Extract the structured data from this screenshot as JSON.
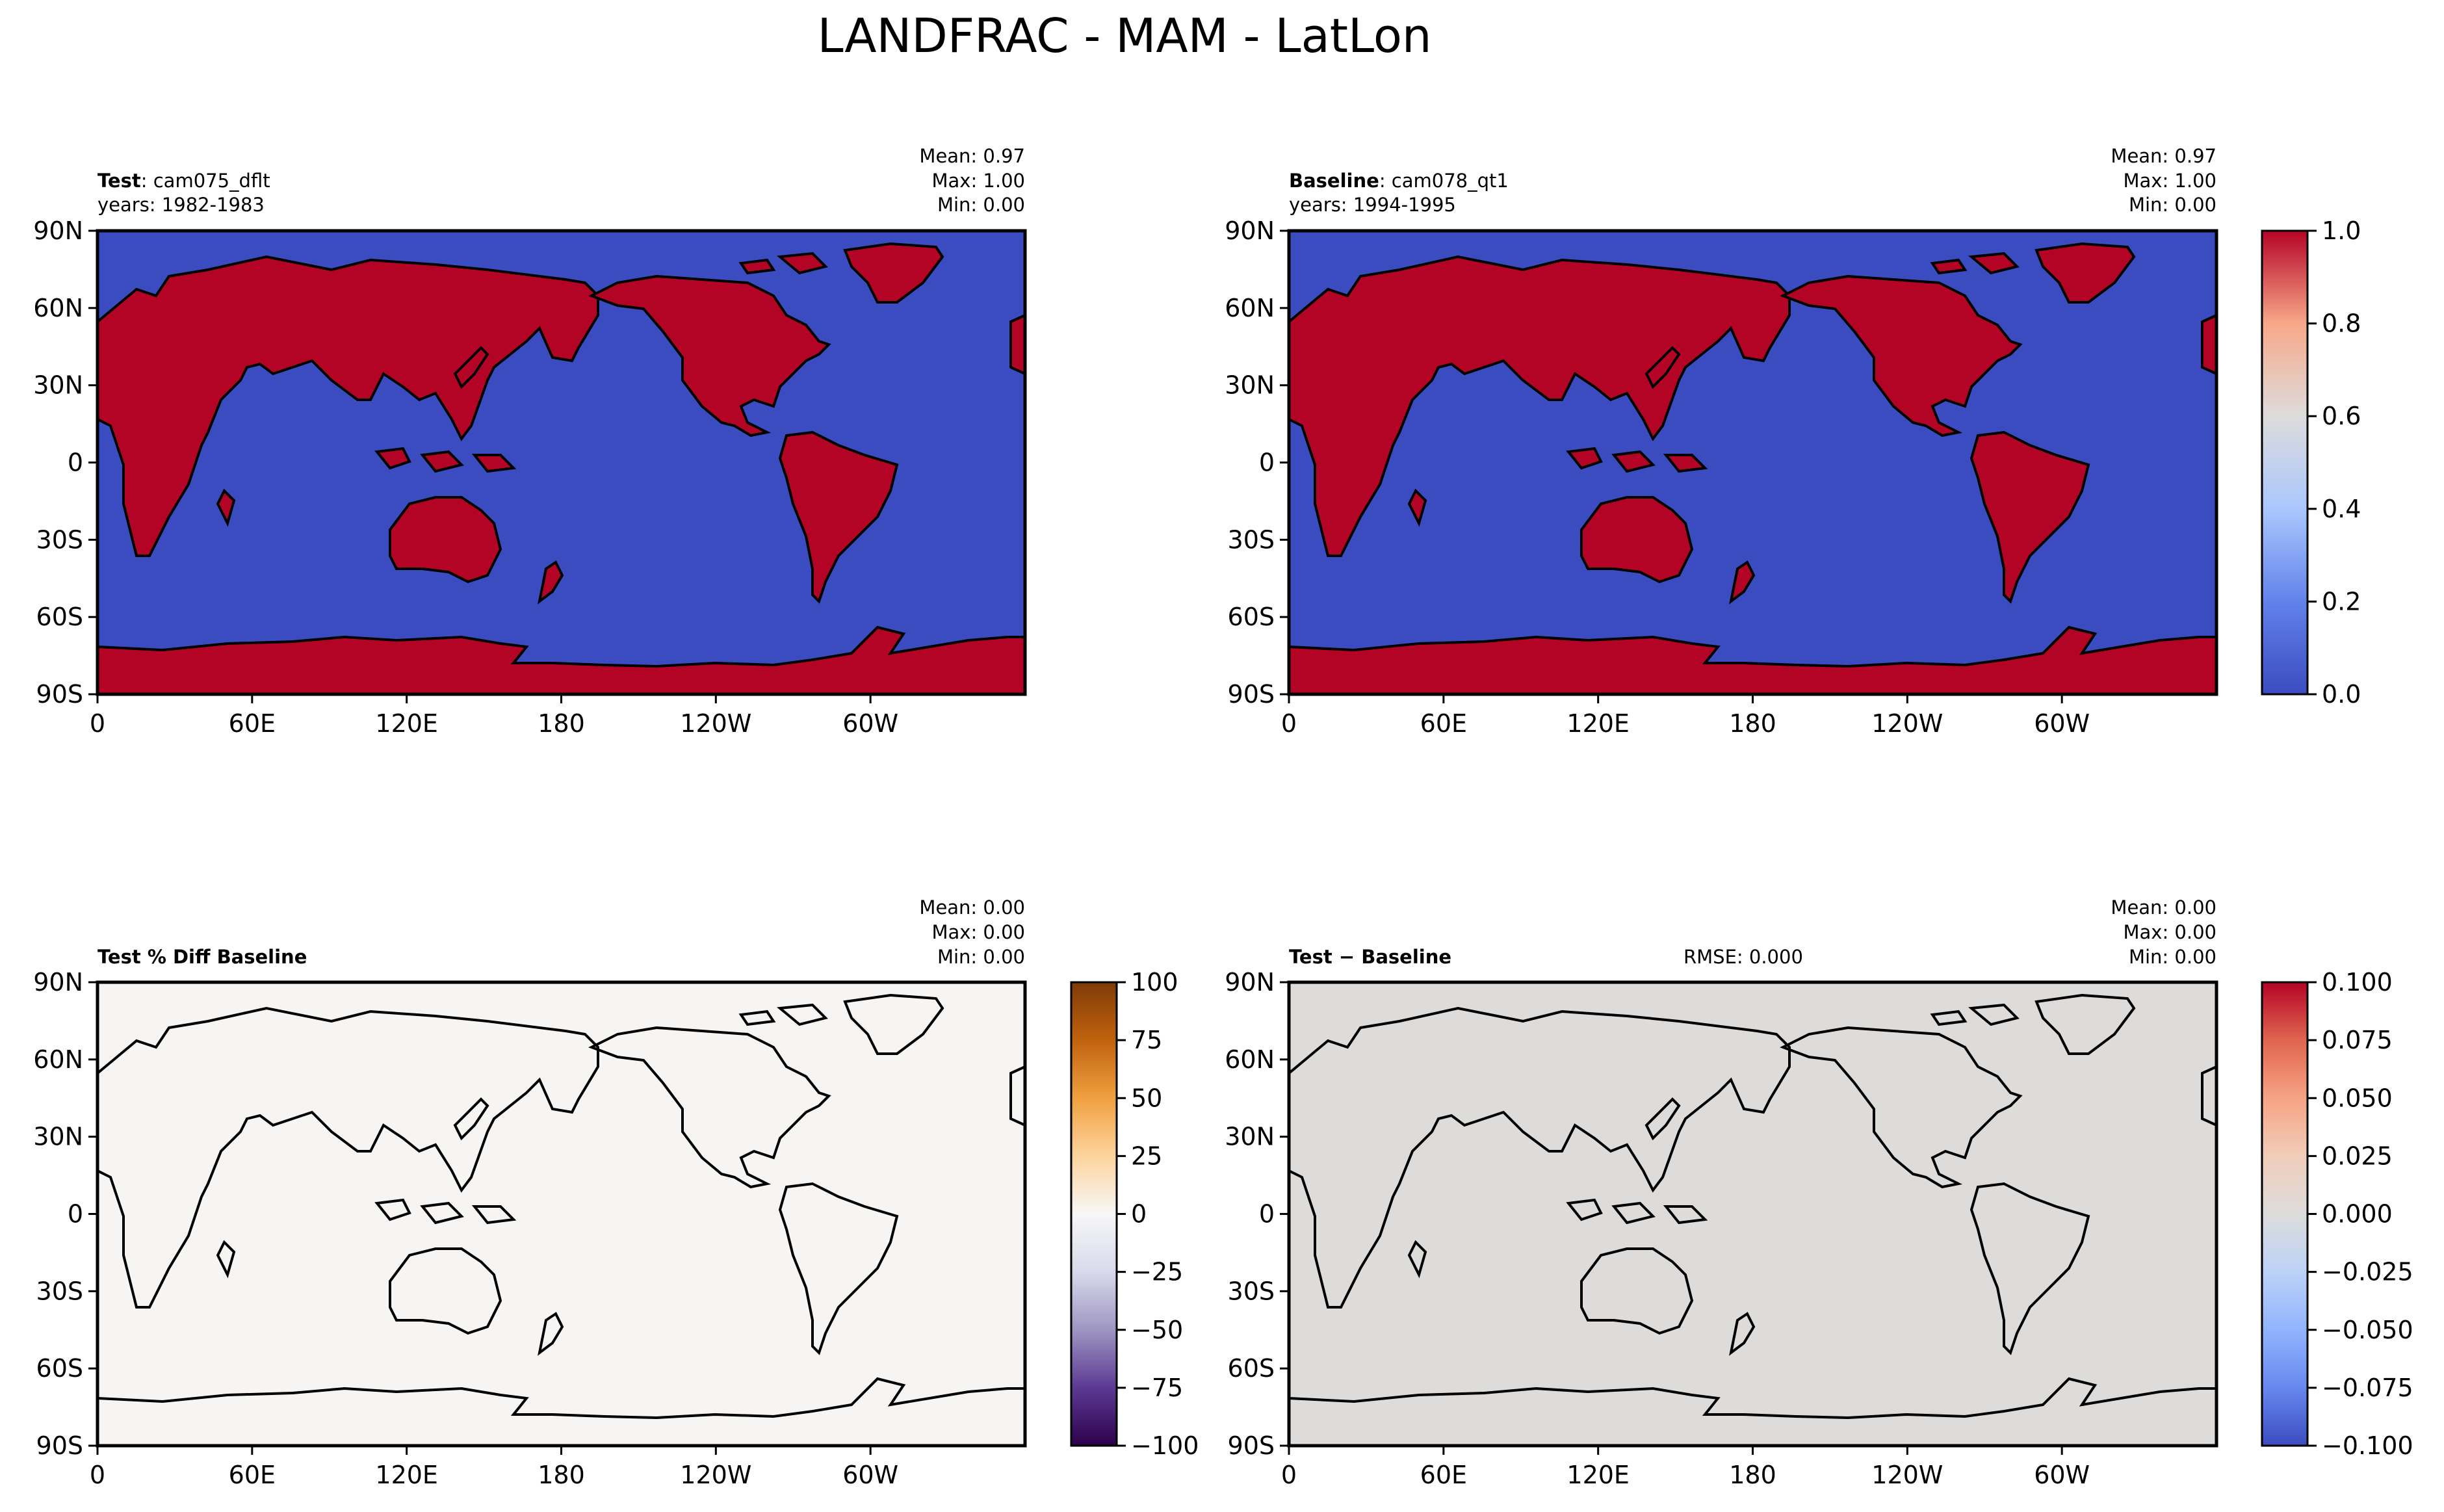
{
  "figure": {
    "title": "LANDFRAC - MAM - LatLon"
  },
  "map_axes": {
    "lat_ticks": [
      "90N",
      "60N",
      "30N",
      "0",
      "30S",
      "60S",
      "90S"
    ],
    "lon_ticks": [
      "0",
      "60E",
      "120E",
      "180",
      "120W",
      "60W"
    ]
  },
  "panels": {
    "test": {
      "title_bold": "Test",
      "title_rest": ": cam075_dflt",
      "years": "years: 1982-1983",
      "stats": [
        "Mean:  0.97",
        "Max:  1.00",
        "Min:  0.00"
      ],
      "rmse": ""
    },
    "baseline": {
      "title_bold": "Baseline",
      "title_rest": ": cam078_qt1",
      "years": "years: 1994-1995",
      "stats": [
        "Mean:  0.97",
        "Max:  1.00",
        "Min:  0.00"
      ],
      "rmse": ""
    },
    "pctdiff": {
      "title_bold": "Test % Diff Baseline",
      "title_rest": "",
      "years": "",
      "stats": [
        "Mean:  0.00",
        "Max:  0.00",
        "Min:  0.00"
      ],
      "rmse": ""
    },
    "diff": {
      "title_bold": "Test − Baseline",
      "title_rest": "",
      "years": "",
      "stats": [
        "Mean:  0.00",
        "Max:  0.00",
        "Min:  0.00"
      ],
      "rmse": "RMSE: 0.000"
    }
  },
  "colorbars": {
    "top": {
      "ticks": [
        "1.0",
        "0.8",
        "0.6",
        "0.4",
        "0.2",
        "0.0"
      ],
      "colors": [
        "#b40426",
        "#f7a889",
        "#dddcdc",
        "#aac7fd",
        "#6282ea",
        "#3b4cc0"
      ]
    },
    "pctdiff": {
      "ticks": [
        "100",
        "75",
        "50",
        "25",
        "0",
        "−25",
        "−50",
        "−75",
        "−100"
      ],
      "colors": [
        "#7f3b08",
        "#c0620e",
        "#f0a040",
        "#fdd49e",
        "#f7f7f7",
        "#d8daeb",
        "#9e95c2",
        "#5c3a93",
        "#2d004b"
      ]
    },
    "diff": {
      "ticks": [
        "0.100",
        "0.075",
        "0.050",
        "0.025",
        "0.000",
        "−0.025",
        "−0.050",
        "−0.075",
        "−0.100"
      ],
      "colors": [
        "#b40426",
        "#e0654f",
        "#f6a385",
        "#f1cdba",
        "#dddcdc",
        "#bcd2f7",
        "#92b4fe",
        "#6788ee",
        "#3b4cc0"
      ]
    }
  },
  "chart_data": [
    {
      "type": "heatmap",
      "panel": "test",
      "variable": "LANDFRAC",
      "mean": 0.97,
      "max": 1.0,
      "min": 0.0,
      "colorbar_range": [
        0.0,
        1.0
      ]
    },
    {
      "type": "heatmap",
      "panel": "baseline",
      "variable": "LANDFRAC",
      "mean": 0.97,
      "max": 1.0,
      "min": 0.0,
      "colorbar_range": [
        0.0,
        1.0
      ]
    },
    {
      "type": "heatmap",
      "panel": "pctdiff",
      "variable": "LANDFRAC",
      "mean": 0.0,
      "max": 0.0,
      "min": 0.0,
      "colorbar_range": [
        -100,
        100
      ]
    },
    {
      "type": "heatmap",
      "panel": "diff",
      "variable": "LANDFRAC",
      "mean": 0.0,
      "max": 0.0,
      "min": 0.0,
      "rmse": 0.0,
      "colorbar_range": [
        -0.1,
        0.1
      ]
    }
  ],
  "colors": {
    "land": "#b40426",
    "ocean": "#3b4cc0",
    "pctdiff_field": "#f6f5f3",
    "diff_field": "#dddcdb"
  }
}
